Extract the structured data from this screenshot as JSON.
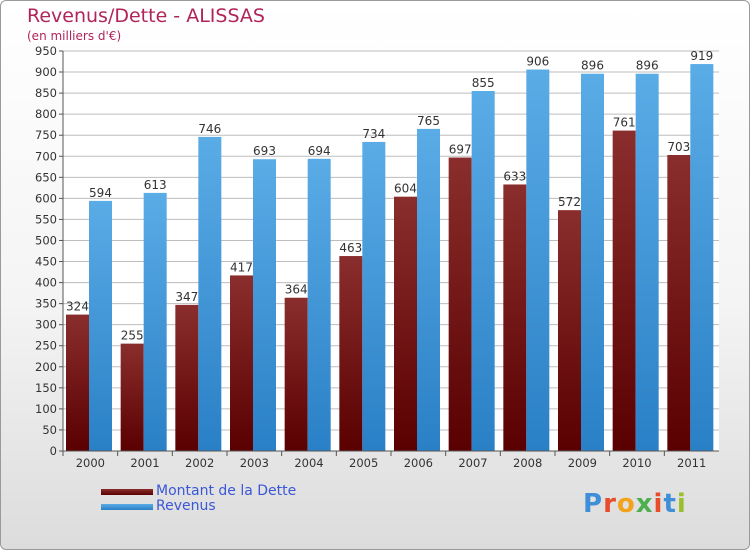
{
  "title": "Revenus/Dette - ALISSAS",
  "subtitle": "(en milliers d'€)",
  "logo": {
    "text": "Proxiti",
    "letter_colors": [
      "#3f8fd8",
      "#e74c2b",
      "#f2a31b",
      "#4caf50",
      "#e74c2b",
      "#3f8fd8",
      "#9bbf2a"
    ]
  },
  "colors": {
    "debt_top": "#8a2d2d",
    "debt_bottom": "#5a0000",
    "revenue_top": "#5aace6",
    "revenue_bottom": "#2a80c6",
    "grid": "#bdbdbd",
    "title": "#b0245a",
    "legend_text": "#3a57d6"
  },
  "chart_data": {
    "type": "bar",
    "categories": [
      "2000",
      "2001",
      "2002",
      "2003",
      "2004",
      "2005",
      "2006",
      "2007",
      "2008",
      "2009",
      "2010",
      "2011"
    ],
    "series": [
      {
        "name": "Montant de la Dette",
        "values": [
          324,
          255,
          347,
          417,
          364,
          463,
          604,
          697,
          633,
          572,
          761,
          703
        ]
      },
      {
        "name": "Revenus",
        "values": [
          594,
          613,
          746,
          693,
          694,
          734,
          765,
          855,
          906,
          896,
          896,
          919
        ]
      }
    ],
    "yticks": [
      0,
      50,
      100,
      150,
      200,
      250,
      300,
      350,
      400,
      450,
      500,
      550,
      600,
      650,
      700,
      750,
      800,
      850,
      900,
      950
    ],
    "ylim": [
      0,
      950
    ],
    "grid": true,
    "legend_position": "bottom-left"
  }
}
